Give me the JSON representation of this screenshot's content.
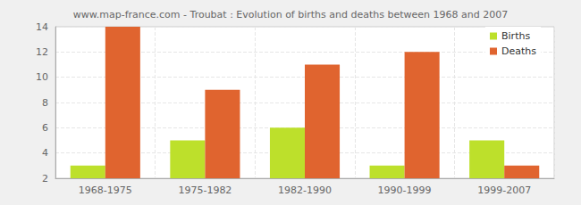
{
  "chart_data": {
    "type": "bar",
    "title": "www.map-france.com - Troubat : Evolution of births and deaths between 1968 and 2007",
    "categories": [
      "1968-1975",
      "1975-1982",
      "1982-1990",
      "1990-1999",
      "1999-2007"
    ],
    "series": [
      {
        "name": "Births",
        "color": "#bde02b",
        "values": [
          3,
          5,
          6,
          3,
          5
        ]
      },
      {
        "name": "Deaths",
        "color": "#e0642f",
        "values": [
          14,
          9,
          11,
          12,
          3
        ]
      }
    ],
    "ylim": [
      2,
      14
    ],
    "yticks": [
      2,
      4,
      6,
      8,
      10,
      12,
      14
    ],
    "grid": true,
    "legend": "upper right"
  }
}
